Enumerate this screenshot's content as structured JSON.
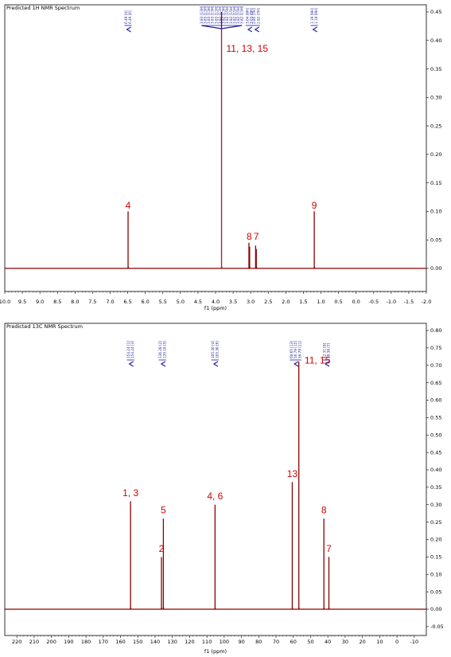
{
  "chart_data": [
    {
      "type": "line",
      "title": "Predicted 1H NMR Spectrum",
      "xlabel": "f1 (ppm)",
      "ylabel": "",
      "xlim": [
        10.0,
        -2.0
      ],
      "ylim": [
        -0.04,
        0.46
      ],
      "x_ticks": [
        "10.0",
        "9.5",
        "9.0",
        "8.5",
        "8.0",
        "7.5",
        "7.0",
        "6.5",
        "6.0",
        "5.5",
        "5.0",
        "4.5",
        "4.0",
        "3.5",
        "3.0",
        "2.5",
        "2.0",
        "1.5",
        "1.0",
        "0.5",
        "0.0",
        "-0.5",
        "-1.0",
        "-1.5",
        "-2.0"
      ],
      "y_ticks": [
        "0.00",
        "0.05",
        "0.10",
        "0.15",
        "0.20",
        "0.25",
        "0.30",
        "0.35",
        "0.40",
        "0.45"
      ],
      "peaks": [
        {
          "x": 6.49,
          "y": 0.1
        },
        {
          "x": 3.83,
          "y": 0.45
        },
        {
          "x": 3.05,
          "y": 0.045
        },
        {
          "x": 3.03,
          "y": 0.038
        },
        {
          "x": 2.86,
          "y": 0.04
        },
        {
          "x": 2.84,
          "y": 0.034
        },
        {
          "x": 1.19,
          "y": 0.1
        }
      ],
      "labels": [
        {
          "text": "4",
          "x": 6.49,
          "y": 0.105
        },
        {
          "text": "11, 13, 15",
          "x": 3.1,
          "y": 0.38
        },
        {
          "text": "8",
          "x": 3.04,
          "y": 0.05
        },
        {
          "text": "7",
          "x": 2.84,
          "y": 0.05
        },
        {
          "text": "9",
          "x": 1.19,
          "y": 0.105
        }
      ],
      "marker_groups": [
        {
          "x": 6.49,
          "texts": [
            "6.49 [4]",
            "6.49 [6]"
          ]
        },
        {
          "x": 3.83,
          "span": [
            4.4,
            3.25
          ],
          "texts": [
            "3.83 [13H]",
            "3.83 [13H]",
            "3.83 [13H]",
            "3.83 [13H]",
            "3.83 [11H]",
            "3.82 [11H]",
            "3.82 [13H]",
            "3.82 [15H]",
            "3.82 [15H]",
            "3.82 [15H]",
            "3.82 [15H]",
            "3.82 [15H]"
          ]
        },
        {
          "x": 3.04,
          "texts": [
            "3.04 [8H]",
            "3.03 [8H]"
          ]
        },
        {
          "x": 2.84,
          "texts": [
            "2.85 [7H]",
            "2.82 [7H]"
          ]
        },
        {
          "x": 1.19,
          "texts": [
            "1.19 [9H]",
            "1.19 [9H]"
          ]
        }
      ]
    },
    {
      "type": "line",
      "title": "Predicted 13C NMR Spectrum",
      "xlabel": "f1 (ppm)",
      "ylabel": "",
      "xlim": [
        227,
        -17
      ],
      "ylim": [
        -0.06,
        0.8
      ],
      "x_ticks": [
        "220",
        "210",
        "200",
        "190",
        "180",
        "170",
        "160",
        "150",
        "140",
        "130",
        "120",
        "110",
        "100",
        "90",
        "80",
        "70",
        "60",
        "50",
        "40",
        "30",
        "20",
        "10",
        "0",
        "-10"
      ],
      "y_ticks": [
        "-0.05",
        "0.00",
        "0.05",
        "0.10",
        "0.15",
        "0.20",
        "0.25",
        "0.30",
        "0.35",
        "0.40",
        "0.45",
        "0.50",
        "0.55",
        "0.60",
        "0.65",
        "0.70",
        "0.75",
        "0.80"
      ],
      "peaks": [
        {
          "x": 154.2,
          "y": 0.31
        },
        {
          "x": 136.3,
          "y": 0.15
        },
        {
          "x": 135.2,
          "y": 0.26
        },
        {
          "x": 105.3,
          "y": 0.3
        },
        {
          "x": 60.6,
          "y": 0.365
        },
        {
          "x": 56.8,
          "y": 0.71
        },
        {
          "x": 42.3,
          "y": 0.26
        },
        {
          "x": 39.4,
          "y": 0.15
        }
      ],
      "labels": [
        {
          "text": "1, 3",
          "x": 154.2,
          "y": 0.325
        },
        {
          "text": "2",
          "x": 136.3,
          "y": 0.165
        },
        {
          "text": "5",
          "x": 135.2,
          "y": 0.275
        },
        {
          "text": "4, 6",
          "x": 105.3,
          "y": 0.315
        },
        {
          "text": "13",
          "x": 60.6,
          "y": 0.38
        },
        {
          "text": "11, 15",
          "x": 46.0,
          "y": 0.705
        },
        {
          "text": "8",
          "x": 42.3,
          "y": 0.275
        },
        {
          "text": "7",
          "x": 39.4,
          "y": 0.165
        }
      ],
      "marker_groups": [
        {
          "x": 154.2,
          "texts": [
            "154.24 [1]",
            "154.24 [3]"
          ]
        },
        {
          "x": 135.7,
          "texts": [
            "136.28 [2]",
            "135.18 [5]"
          ]
        },
        {
          "x": 105.3,
          "texts": [
            "105.30 [4]",
            "105.30 [6]"
          ]
        },
        {
          "x": 58.7,
          "texts": [
            "60.65 [13]",
            "56.79 [15]",
            "56.79 [11]"
          ]
        },
        {
          "x": 40.8,
          "texts": [
            "42.31 [8]",
            "39.38 [7]"
          ]
        }
      ]
    }
  ]
}
